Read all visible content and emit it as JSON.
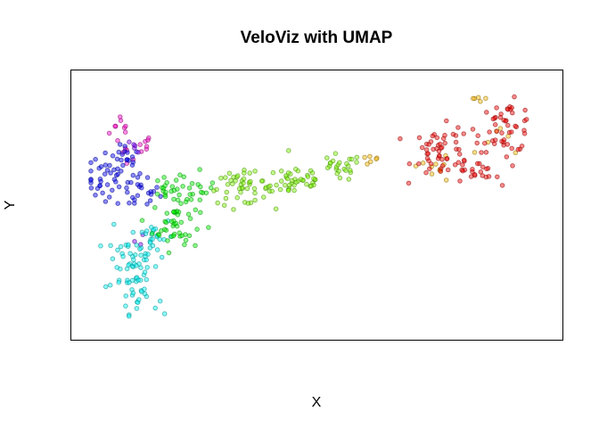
{
  "chart_data": {
    "type": "scatter",
    "title": "VeloViz with UMAP",
    "xlabel": "X",
    "ylabel": "Y",
    "axes_ticks_shown": false,
    "grid": false,
    "legend": "none",
    "marker": "filled circle, semi-transparent with darker outline",
    "clusters": [
      {
        "color": "#ff00cc",
        "centers": [
          [
            -7.6,
            7.4,
            9,
            0.9,
            1.5
          ],
          [
            -6.2,
            5.8,
            7,
            0.8,
            1.0
          ],
          [
            -7.2,
            5.2,
            5,
            0.6,
            0.8
          ]
        ]
      },
      {
        "color": "#0000ff",
        "centers": [
          [
            -8.6,
            2.6,
            40,
            1.6,
            2.2
          ],
          [
            -6.4,
            1.4,
            25,
            1.4,
            1.8
          ],
          [
            -7.4,
            4.6,
            12,
            1.0,
            1.2
          ]
        ]
      },
      {
        "color": "#7f00ff",
        "centers": [
          [
            -6.8,
            5.4,
            5,
            0.5,
            0.6
          ],
          [
            -6.4,
            -3.2,
            3,
            0.5,
            0.8
          ]
        ]
      },
      {
        "color": "#00ffff",
        "centers": [
          [
            -7.0,
            -5.6,
            50,
            1.8,
            2.8
          ],
          [
            -5.4,
            -3.0,
            25,
            1.5,
            1.8
          ],
          [
            -6.4,
            -9.0,
            20,
            1.3,
            1.4
          ]
        ]
      },
      {
        "color": "#00ff00",
        "centers": [
          [
            -3.6,
            -1.8,
            45,
            1.6,
            2.4
          ],
          [
            -2.8,
            1.4,
            30,
            2.0,
            1.6
          ],
          [
            -4.4,
            1.8,
            8,
            0.6,
            0.8
          ]
        ]
      },
      {
        "color": "#7fff00",
        "centers": [
          [
            1.2,
            1.6,
            45,
            2.2,
            1.4
          ],
          [
            5.4,
            2.4,
            45,
            2.2,
            1.6
          ],
          [
            8.6,
            3.6,
            25,
            1.6,
            1.2
          ]
        ]
      },
      {
        "color": "#ffbb00",
        "centers": [
          [
            11.2,
            4.3,
            6,
            0.8,
            0.4
          ],
          [
            15.6,
            3.6,
            10,
            1.4,
            1.4
          ],
          [
            21.2,
            5.8,
            6,
            1.6,
            1.4
          ],
          [
            19.2,
            10.4,
            5,
            0.8,
            0.4
          ]
        ]
      },
      {
        "color": "#ff0000",
        "centers": [
          [
            16.4,
            5.2,
            50,
            2.0,
            2.2
          ],
          [
            21.2,
            7.6,
            50,
            2.0,
            2.2
          ],
          [
            18.6,
            3.2,
            25,
            1.8,
            1.4
          ]
        ]
      }
    ],
    "xlim": [
      -10,
      24
    ],
    "ylim": [
      -12,
      12
    ]
  }
}
